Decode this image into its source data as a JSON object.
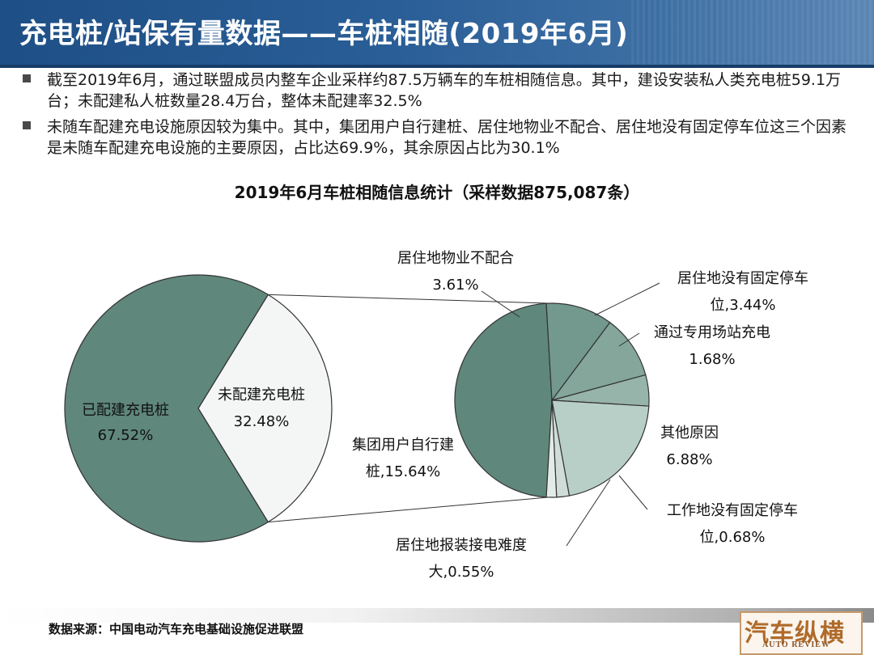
{
  "slide": {
    "title": "充电桩/站保有量数据——车桩相随(2019年6月)",
    "bullets": [
      "截至2019年6月，通过联盟成员内整车企业采样约87.5万辆车的车桩相随信息。其中，建设安装私人类充电桩59.1万台；未配建私人桩数量28.4万台，整体未配建率32.5%",
      "未随车配建充电设施原因较为集中。其中，集团用户自行建桩、居住地物业不配合、居住地没有固定停车位这三个因素是未随车配建充电设施的主要原因，占比达69.9%，其余原因占比为30.1%"
    ],
    "source": "数据来源：中国电动汽车充电基础设施促进联盟",
    "logo_cn": "汽车纵横",
    "logo_en": "AUTO REVIEW"
  },
  "colors": {
    "title_bar": "#1e4f86",
    "dark_slice": "#5f877c",
    "light_slice": "#f4f6f5",
    "slice_edge": "#333333"
  },
  "chart_data": {
    "type": "pie",
    "title": "2019年6月车桩相随信息统计（采样数据875,087条）",
    "main": {
      "slices": [
        {
          "label": "已配建充电桩",
          "value": 67.52,
          "value_text": "67.52%",
          "color": "#5f877c"
        },
        {
          "label": "未配建充电桩",
          "value": 32.48,
          "value_text": "32.48%",
          "color": "#f4f6f5"
        }
      ]
    },
    "breakdown": {
      "of": "未配建充电桩",
      "slices": [
        {
          "label": "集团用户自行建桩",
          "value": 15.64,
          "value_text": "15.64%",
          "color": "#5f877c"
        },
        {
          "label": "居住地物业不配合",
          "value": 3.61,
          "value_text": "3.61%",
          "color": "#73998e"
        },
        {
          "label": "居住地没有固定停车位",
          "value": 3.44,
          "value_text": "3.44%",
          "color": "#84a69b"
        },
        {
          "label": "通过专用场站充电",
          "value": 1.68,
          "value_text": "1.68%",
          "color": "#97b4aa"
        },
        {
          "label": "其他原因",
          "value": 6.88,
          "value_text": "6.88%",
          "color": "#b8cfc7"
        },
        {
          "label": "工作地没有固定停车位",
          "value": 0.68,
          "value_text": "0.68%",
          "color": "#cfdcd7"
        },
        {
          "label": "居住地报装接电难度大",
          "value": 0.55,
          "value_text": "0.55%",
          "color": "#e3ebe8"
        }
      ]
    },
    "label_lines": {
      "main": [
        [
          "已配建充电桩",
          "67.52%"
        ],
        [
          "未配建充电桩",
          "32.48%"
        ]
      ],
      "breakdown": [
        [
          "集团用户自行建",
          "桩,15.64%"
        ],
        [
          "居住地物业不配合",
          "3.61%"
        ],
        [
          "居住地没有固定停车",
          "位,3.44%"
        ],
        [
          "通过专用场站充电",
          "1.68%"
        ],
        [
          "其他原因",
          "6.88%"
        ],
        [
          "工作地没有固定停车",
          "位,0.68%"
        ],
        [
          "居住地报装接电难度",
          "大,0.55%"
        ]
      ]
    }
  }
}
